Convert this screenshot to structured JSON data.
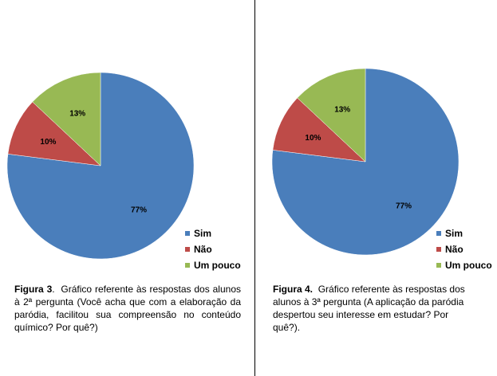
{
  "colors": {
    "sim": "#4a7ebb",
    "nao": "#be4b48",
    "um_pouco": "#98b954"
  },
  "legend_labels": [
    "Sim",
    "Não",
    "Um pouco"
  ],
  "chart_data": [
    {
      "type": "pie",
      "categories": [
        "Sim",
        "Não",
        "Um pouco"
      ],
      "values": [
        77,
        10,
        13
      ],
      "data_labels": [
        "77%",
        "10%",
        "13%"
      ],
      "legend_position": "bottom-right"
    },
    {
      "type": "pie",
      "categories": [
        "Sim",
        "Não",
        "Um pouco"
      ],
      "values": [
        77,
        10,
        13
      ],
      "data_labels": [
        "77%",
        "10%",
        "13%"
      ],
      "legend_position": "bottom-right"
    }
  ],
  "figures": [
    {
      "title": "Figura 3",
      "separator": ".",
      "caption": "Gráfico referente às respostas dos alunos à 2ª pergunta (Você acha que com a elaboração da paródia, facilitou sua compreensão no conteúdo químico? Por quê?)"
    },
    {
      "title": "Figura 4.",
      "separator": "",
      "caption": "Gráfico referente às respostas dos alunos à 3ª pergunta (A aplicação da paródia despertou seu interesse em estudar? Por quê?)."
    }
  ]
}
